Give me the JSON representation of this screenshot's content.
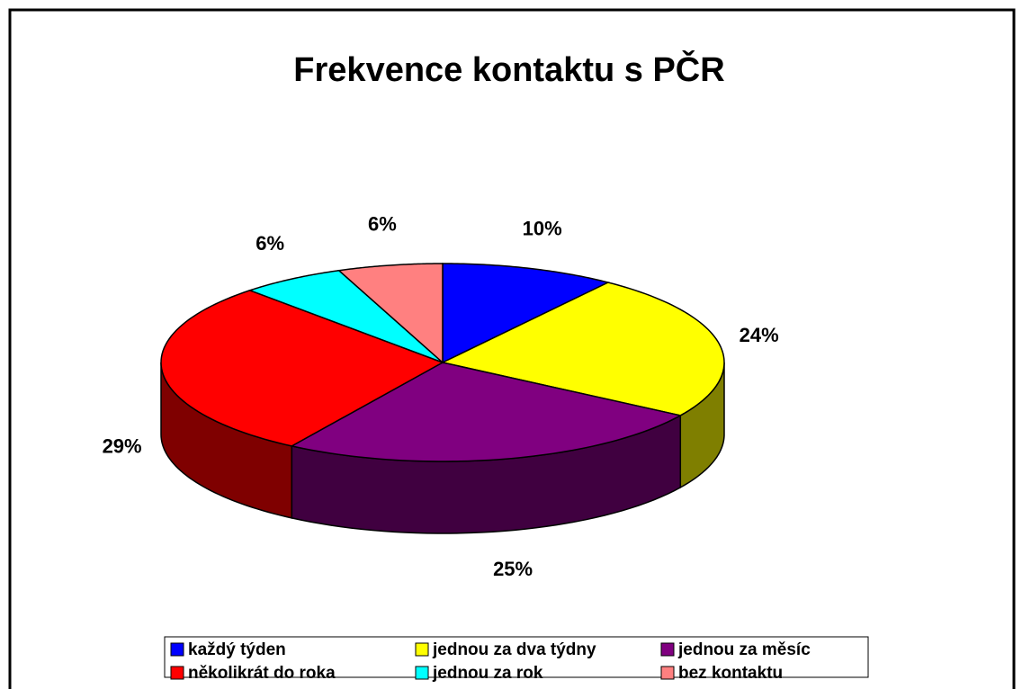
{
  "chart_data": {
    "type": "pie",
    "title": "Frekvence kontaktu s PČR",
    "categories": [
      "každý týden",
      "jednou za dva týdny",
      "jednou za měsíc",
      "několikrát do roka",
      "jednou za rok",
      "bez kontaktu"
    ],
    "values": [
      10,
      24,
      25,
      29,
      6,
      6
    ],
    "value_labels": [
      "10%",
      "24%",
      "25%",
      "29%",
      "6%",
      "6%"
    ],
    "colors": [
      "#0000ff",
      "#ffff00",
      "#800080",
      "#ff0000",
      "#00ffff",
      "#ff8080"
    ],
    "legend": "bottom"
  }
}
